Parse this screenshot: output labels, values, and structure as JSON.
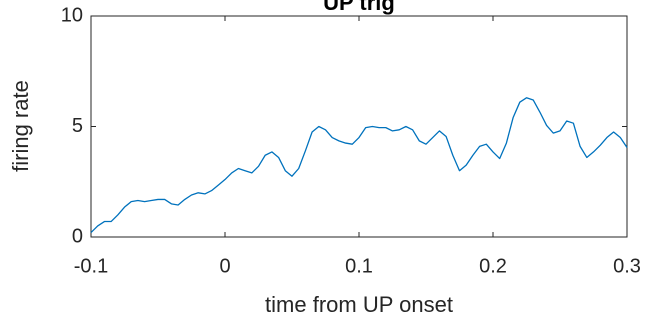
{
  "chart_data": {
    "type": "line",
    "title": "UP trig",
    "xlabel": "time from UP onset",
    "ylabel": "firing rate",
    "x": [
      -0.1,
      -0.095,
      -0.09,
      -0.085,
      -0.08,
      -0.075,
      -0.07,
      -0.065,
      -0.06,
      -0.055,
      -0.05,
      -0.045,
      -0.04,
      -0.035,
      -0.03,
      -0.025,
      -0.02,
      -0.015,
      -0.01,
      -0.005,
      0,
      0.005,
      0.01,
      0.015,
      0.02,
      0.025,
      0.03,
      0.035,
      0.04,
      0.045,
      0.05,
      0.055,
      0.06,
      0.065,
      0.07,
      0.075,
      0.08,
      0.085,
      0.09,
      0.095,
      0.1,
      0.105,
      0.11,
      0.115,
      0.12,
      0.125,
      0.13,
      0.135,
      0.14,
      0.145,
      0.15,
      0.155,
      0.16,
      0.165,
      0.17,
      0.175,
      0.18,
      0.185,
      0.19,
      0.195,
      0.2,
      0.205,
      0.21,
      0.215,
      0.22,
      0.225,
      0.23,
      0.235,
      0.24,
      0.245,
      0.25,
      0.255,
      0.26,
      0.265,
      0.27,
      0.275,
      0.28,
      0.285,
      0.29,
      0.295,
      0.3
    ],
    "series": [
      {
        "name": "firing rate",
        "color": "#0072bd",
        "values": [
          0.2,
          0.5,
          0.7,
          0.7,
          1.0,
          1.35,
          1.6,
          1.65,
          1.6,
          1.65,
          1.7,
          1.7,
          1.5,
          1.45,
          1.7,
          1.9,
          2.0,
          1.95,
          2.1,
          2.35,
          2.6,
          2.9,
          3.1,
          3.0,
          2.9,
          3.2,
          3.7,
          3.85,
          3.6,
          3.0,
          2.75,
          3.1,
          3.9,
          4.75,
          5.0,
          4.85,
          4.5,
          4.35,
          4.25,
          4.2,
          4.5,
          4.95,
          5.0,
          4.95,
          4.95,
          4.8,
          4.85,
          5.0,
          4.85,
          4.35,
          4.2,
          4.5,
          4.8,
          4.55,
          3.7,
          3.0,
          3.25,
          3.7,
          4.1,
          4.2,
          3.85,
          3.55,
          4.25,
          5.4,
          6.1,
          6.3,
          6.2,
          5.65,
          5.05,
          4.7,
          4.8,
          5.25,
          5.15,
          4.1,
          3.6,
          3.85,
          4.15,
          4.5,
          4.75,
          4.5,
          4.05
        ]
      }
    ],
    "xlim": [
      -0.1,
      0.3
    ],
    "xticks": [
      -0.1,
      0,
      0.1,
      0.2,
      0.3
    ],
    "ylim": [
      0,
      10
    ],
    "yticks": [
      0,
      5,
      10
    ]
  }
}
